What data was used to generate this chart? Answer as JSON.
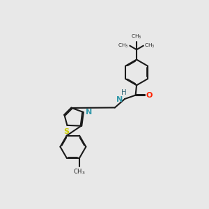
{
  "background_color": "#e8e8e8",
  "bond_color": "#1a1a1a",
  "nitrogen_color": "#3399aa",
  "sulfur_color": "#cccc00",
  "oxygen_color": "#ff2200",
  "line_width": 1.5,
  "dbo": 0.018,
  "fig_width": 3.0,
  "fig_height": 3.0,
  "xlim": [
    0,
    10
  ],
  "ylim": [
    0,
    10
  ],
  "ring_r": 0.62,
  "tbu_label": "C(CH$_3$)$_3$",
  "me_label": "CH$_3$",
  "N_label": "N",
  "S_label": "S",
  "H_label": "H",
  "O_label": "O"
}
